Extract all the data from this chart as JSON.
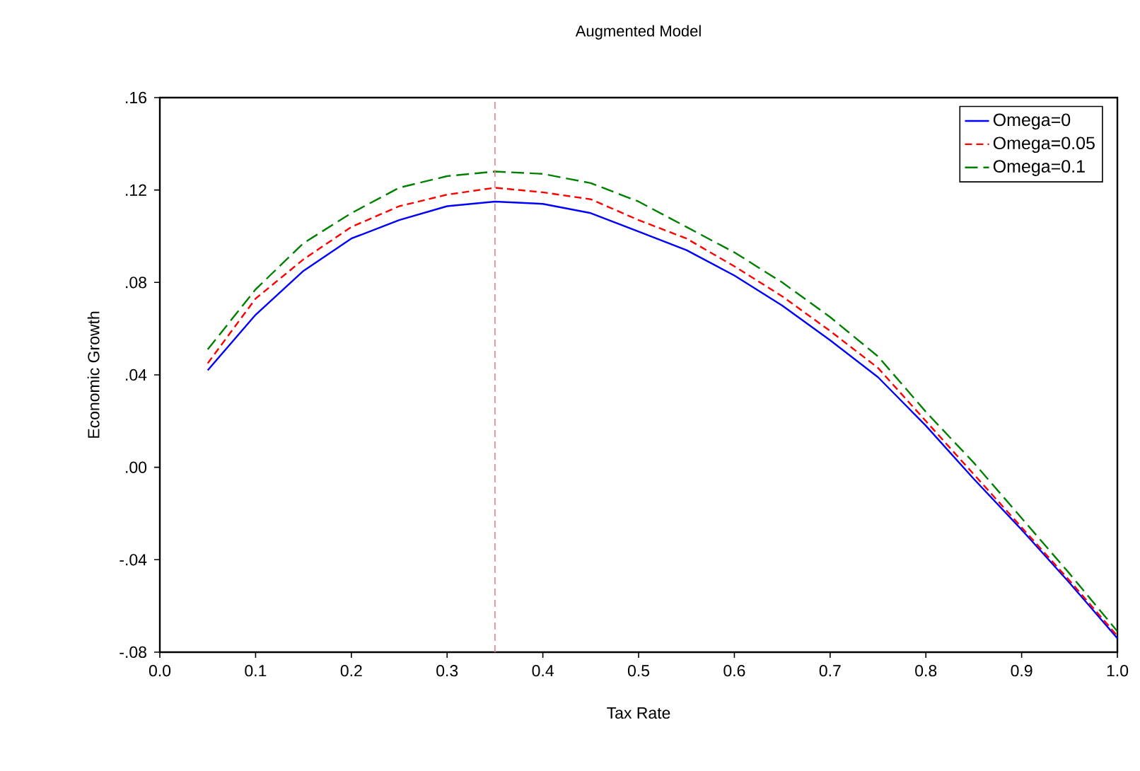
{
  "chart_data": {
    "type": "line",
    "title": "Augmented Model",
    "xlabel": "Tax Rate",
    "ylabel": "Economic Growth",
    "x": [
      0.05,
      0.1,
      0.15,
      0.2,
      0.25,
      0.3,
      0.35,
      0.4,
      0.45,
      0.5,
      0.55,
      0.6,
      0.65,
      0.7,
      0.75,
      0.8,
      0.85,
      0.9,
      0.95,
      1.0
    ],
    "series": [
      {
        "name": "Omega=0",
        "color": "#0000ff",
        "line_style": "solid",
        "values": [
          0.042,
          0.066,
          0.085,
          0.099,
          0.107,
          0.113,
          0.115,
          0.114,
          0.11,
          0.102,
          0.094,
          0.083,
          0.07,
          0.055,
          0.039,
          0.018,
          -0.005,
          -0.027,
          -0.05,
          -0.074
        ]
      },
      {
        "name": "Omega=0.05",
        "color": "#ff0000",
        "line_style": "dashed",
        "values": [
          0.045,
          0.073,
          0.09,
          0.104,
          0.113,
          0.118,
          0.121,
          0.119,
          0.116,
          0.107,
          0.099,
          0.087,
          0.074,
          0.059,
          0.043,
          0.02,
          -0.003,
          -0.026,
          -0.049,
          -0.073
        ]
      },
      {
        "name": "Omega=0.1",
        "color": "#008000",
        "line_style": "dashed",
        "values": [
          0.051,
          0.077,
          0.097,
          0.11,
          0.121,
          0.126,
          0.128,
          0.127,
          0.123,
          0.115,
          0.104,
          0.093,
          0.08,
          0.065,
          0.048,
          0.024,
          0.002,
          -0.022,
          -0.046,
          -0.071
        ]
      }
    ],
    "xlim": [
      0.0,
      1.0
    ],
    "ylim": [
      -0.08,
      0.16
    ],
    "xticks": [
      {
        "value": 0.0,
        "label": "0.0"
      },
      {
        "value": 0.1,
        "label": "0.1"
      },
      {
        "value": 0.2,
        "label": "0.2"
      },
      {
        "value": 0.3,
        "label": "0.3"
      },
      {
        "value": 0.4,
        "label": "0.4"
      },
      {
        "value": 0.5,
        "label": "0.5"
      },
      {
        "value": 0.6,
        "label": "0.6"
      },
      {
        "value": 0.7,
        "label": "0.7"
      },
      {
        "value": 0.8,
        "label": "0.8"
      },
      {
        "value": 0.9,
        "label": "0.9"
      },
      {
        "value": 1.0,
        "label": "1.0"
      }
    ],
    "yticks": [
      {
        "value": -0.08,
        "label": "-.08"
      },
      {
        "value": -0.04,
        "label": "-.04"
      },
      {
        "value": 0.0,
        "label": ".00"
      },
      {
        "value": 0.04,
        "label": ".04"
      },
      {
        "value": 0.08,
        "label": ".08"
      },
      {
        "value": 0.12,
        "label": ".12"
      },
      {
        "value": 0.16,
        "label": ".16"
      }
    ],
    "ref_lines": [
      {
        "axis": "x",
        "value": 0.35,
        "color": "#f08080",
        "line_style": "dashed"
      }
    ],
    "legend": "top right",
    "grid": false,
    "marker": "none"
  }
}
